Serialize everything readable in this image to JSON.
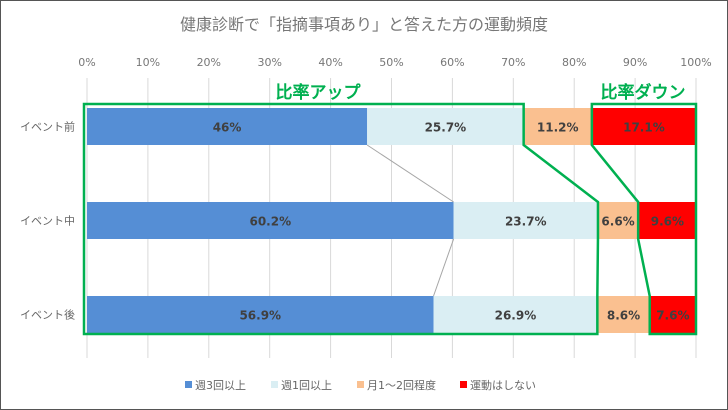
{
  "chart_data": {
    "type": "bar",
    "stacked": "percent",
    "orientation": "horizontal",
    "title": "健康診断で「指摘事項あり」と答えた方の運動頻度",
    "categories": [
      "イベント前",
      "イベント中",
      "イベント後"
    ],
    "series": [
      {
        "name": "週3回以上",
        "values": [
          46,
          60.2,
          56.9
        ],
        "labels": [
          "46%",
          "60.2%",
          "56.9%"
        ],
        "color": "#558ED5"
      },
      {
        "name": "週1回以上",
        "values": [
          25.7,
          23.7,
          26.9
        ],
        "labels": [
          "25.7%",
          "23.7%",
          "26.9%"
        ],
        "color": "#DAEEF3"
      },
      {
        "name": "月1〜2回程度",
        "values": [
          11.2,
          6.6,
          8.6
        ],
        "labels": [
          "11.2%",
          "6.6%",
          "8.6%"
        ],
        "color": "#FAC090"
      },
      {
        "name": "運動はしない",
        "values": [
          17.1,
          9.6,
          7.6
        ],
        "labels": [
          "17.1%",
          "9.6%",
          "7.6%"
        ],
        "color": "#FF0000"
      }
    ],
    "xlim": [
      0,
      100
    ],
    "xticks": [
      "0%",
      "10%",
      "20%",
      "30%",
      "40%",
      "50%",
      "60%",
      "70%",
      "80%",
      "90%",
      "100%"
    ],
    "grid": true,
    "legend": "bottom",
    "annotations": [
      {
        "text": "比率アップ",
        "color": "#00B050"
      },
      {
        "text": "比率ダウン",
        "color": "#00B050"
      }
    ]
  }
}
